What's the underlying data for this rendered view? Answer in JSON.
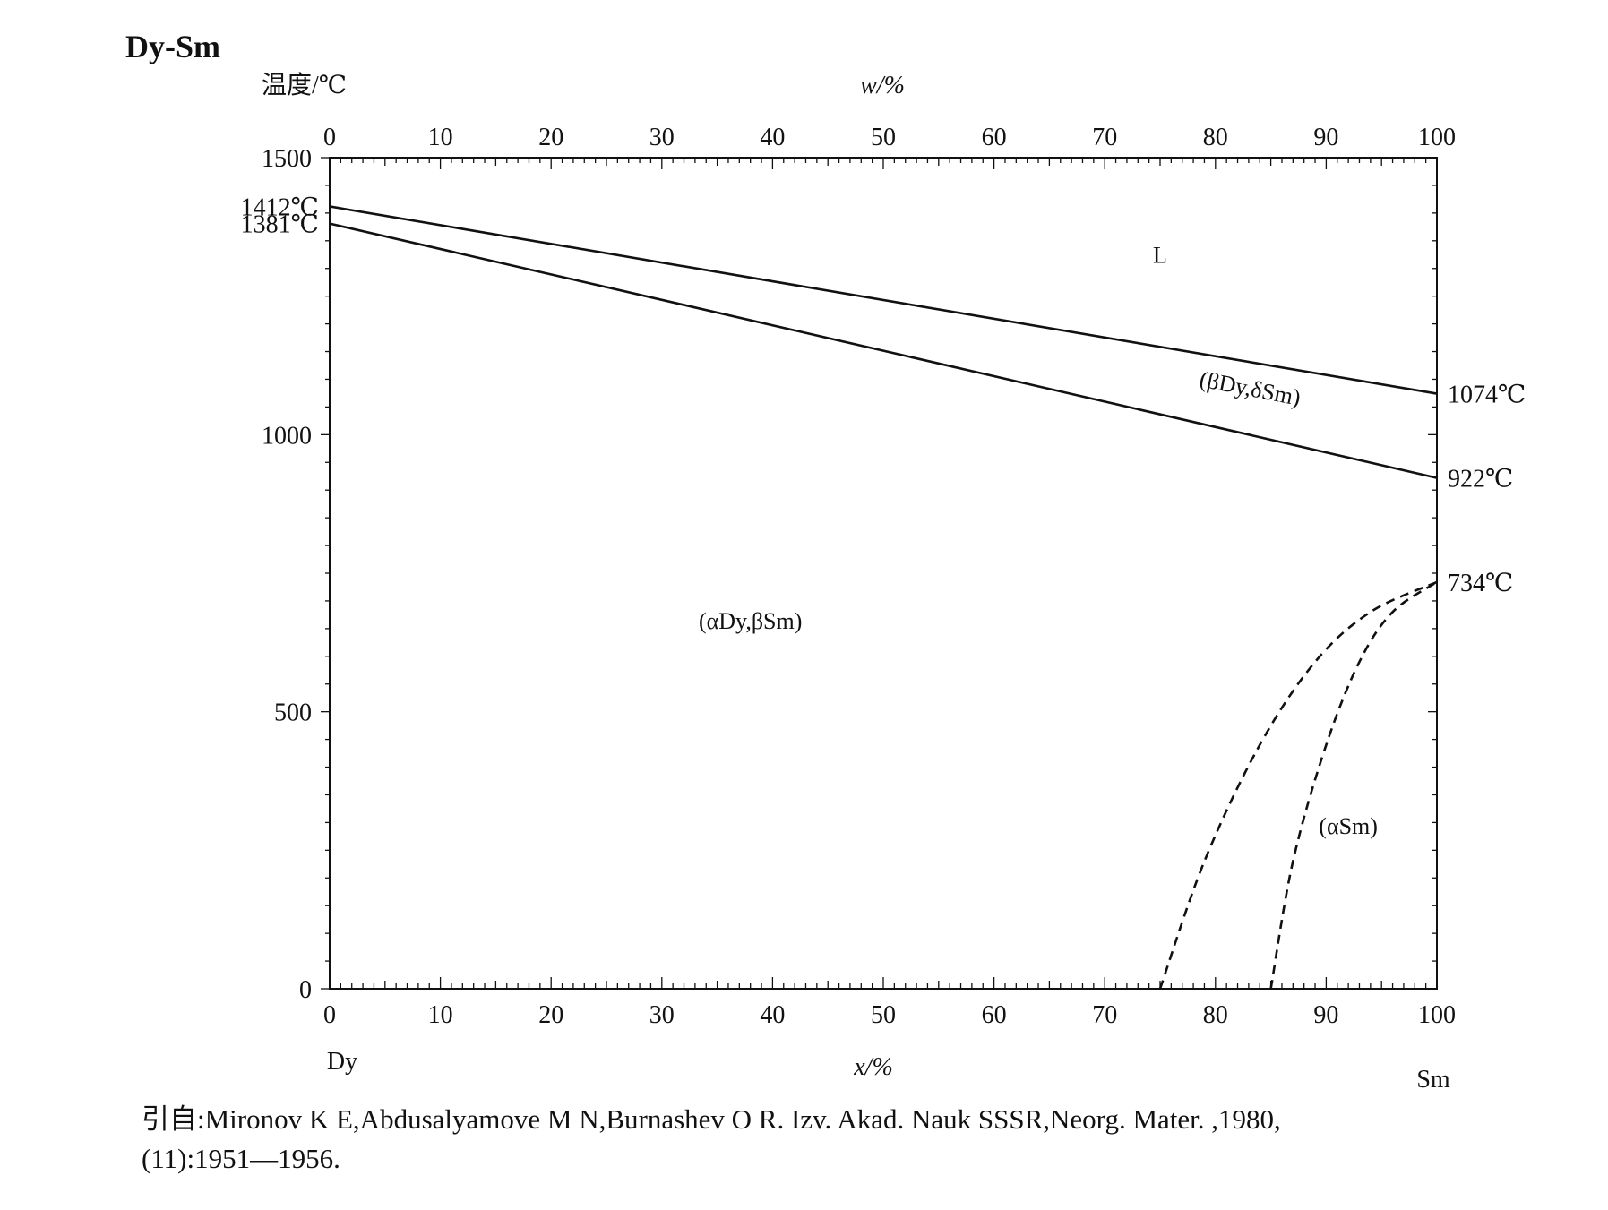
{
  "chart_data": {
    "type": "line",
    "title": "Dy-Sm",
    "ylabel": "温度/℃",
    "xlabel": "x/%",
    "top_xlabel": "w/%",
    "ylim": [
      0,
      1500
    ],
    "xlim": [
      0,
      100
    ],
    "yticks": [
      "0",
      "500",
      "1000",
      "1500"
    ],
    "xticks": [
      "0",
      "10",
      "20",
      "30",
      "40",
      "50",
      "60",
      "70",
      "80",
      "90",
      "100"
    ],
    "top_xticks": [
      "0",
      "10",
      "20",
      "30",
      "40",
      "50",
      "60",
      "70",
      "80",
      "90",
      "100"
    ],
    "left_component": "Dy",
    "right_component": "Sm",
    "grid": false,
    "series": [
      {
        "style": "solid",
        "x": [
          0,
          100
        ],
        "y": [
          1412,
          1074
        ]
      },
      {
        "style": "solid",
        "x": [
          0,
          100
        ],
        "y": [
          1381,
          922
        ]
      },
      {
        "style": "dashed",
        "x": [
          75,
          79,
          84,
          89,
          94,
          100
        ],
        "y": [
          0,
          230,
          440,
          590,
          680,
          734
        ]
      },
      {
        "style": "dashed",
        "x": [
          85,
          87,
          90,
          93,
          96,
          100
        ],
        "y": [
          0,
          230,
          440,
          590,
          680,
          734
        ]
      }
    ],
    "annotations": [
      {
        "text": "1412℃",
        "x": 0,
        "y": 1412
      },
      {
        "text": "1381℃",
        "x": 0,
        "y": 1381
      },
      {
        "text": "1074℃",
        "x": 100,
        "y": 1074
      },
      {
        "text": "922℃",
        "x": 100,
        "y": 922
      },
      {
        "text": "734℃",
        "x": 100,
        "y": 734
      }
    ],
    "regions": [
      {
        "text": "L",
        "x": 75,
        "y": 1310
      },
      {
        "text": "(βDy,δSm)",
        "x": 83,
        "y": 1070
      },
      {
        "text": "(αDy,βSm)",
        "x": 38,
        "y": 650
      },
      {
        "text": "(αSm)",
        "x": 92,
        "y": 280
      }
    ]
  },
  "citation": {
    "line1": "引自:Mironov K E,Abdusalyamove M N,Burnashev O R. Izv.  Akad.  Nauk SSSR,Neorg.  Mater. ,1980,",
    "line2": "(11):1951—1956."
  }
}
